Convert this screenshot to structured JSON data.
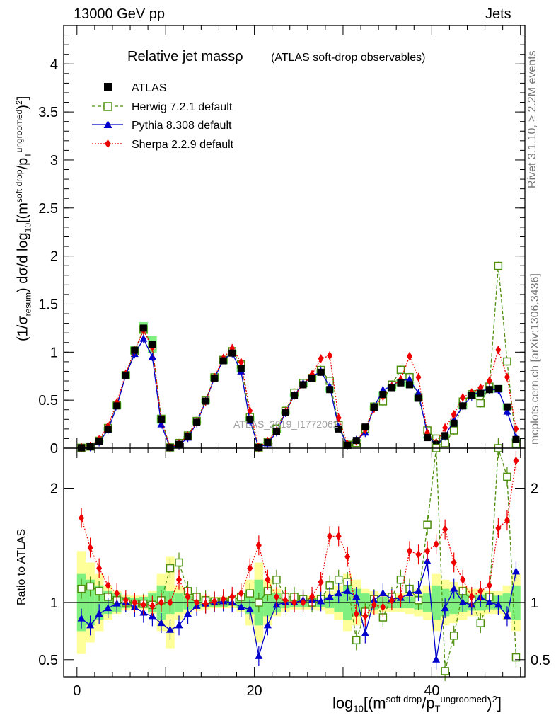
{
  "header": {
    "left": "13000 GeV pp",
    "right": "Jets"
  },
  "side_labels": {
    "rivet": "Rivet 3.1.10, ≥ 2.2M events",
    "mcplots": "mcplots.cern.ch [arXiv:1306.3436]"
  },
  "chart_data": {
    "type": "line",
    "title": "Relative jet massρ",
    "subtitle": "(ATLAS soft-drop observables)",
    "watermark": "ATLAS_2019_I1772062",
    "xlabel": "log10[(m^{soft drop}/p_T^{ungroomed})^2]",
    "ylabel": "(1/σ_resum) dσ/d log10[(m^{soft drop}/p_T^{ungroomed})^2]",
    "ratio_ylabel": "Ratio to ATLAS",
    "xlim": [
      -1.5,
      50.5
    ],
    "ylim": [
      0,
      4.4
    ],
    "ratio_ylim": [
      0.35,
      2.35
    ],
    "xticks": [
      0,
      20,
      40
    ],
    "yticks": [
      "0",
      "0.5",
      "1",
      "1.5",
      "2",
      "2.5",
      "3",
      "3.5",
      "4"
    ],
    "ratio_yticks": [
      "0.5",
      "1",
      "2"
    ],
    "legend_position": "top-left",
    "x": [
      0.5,
      1.5,
      2.5,
      3.5,
      4.5,
      5.5,
      6.5,
      7.5,
      8.5,
      9.5,
      10.5,
      11.5,
      12.5,
      13.5,
      14.5,
      15.5,
      16.5,
      17.5,
      18.5,
      19.5,
      20.5,
      21.5,
      22.5,
      23.5,
      24.5,
      25.5,
      26.5,
      27.5,
      28.5,
      29.5,
      30.5,
      31.5,
      32.5,
      33.5,
      34.5,
      35.5,
      36.5,
      37.5,
      38.5,
      39.5,
      40.5,
      41.5,
      42.5,
      43.5,
      44.5,
      45.5,
      46.5,
      47.5,
      48.5,
      49.5
    ],
    "data": {
      "name": "ATLAS",
      "values": [
        0.004,
        0.015,
        0.07,
        0.2,
        0.44,
        0.76,
        1.02,
        1.25,
        1.08,
        0.3,
        0.006,
        0.04,
        0.12,
        0.27,
        0.49,
        0.73,
        0.91,
        0.99,
        0.83,
        0.3,
        0.007,
        0.06,
        0.17,
        0.37,
        0.55,
        0.66,
        0.73,
        0.79,
        0.61,
        0.2,
        0.03,
        0.08,
        0.22,
        0.42,
        0.56,
        0.63,
        0.68,
        0.66,
        0.52,
        0.11,
        0.04,
        0.13,
        0.26,
        0.44,
        0.55,
        0.57,
        0.61,
        0.62,
        0.43,
        0.09
      ],
      "band_green": [
        0.25,
        0.2,
        0.15,
        0.1,
        0.08,
        0.05,
        0.04,
        0.05,
        0.08,
        0.15,
        0.1,
        0.08,
        0.06,
        0.05,
        0.04,
        0.04,
        0.04,
        0.03,
        0.05,
        0.1,
        0.2,
        0.12,
        0.08,
        0.05,
        0.04,
        0.04,
        0.04,
        0.04,
        0.05,
        0.08,
        0.15,
        0.12,
        0.08,
        0.06,
        0.05,
        0.05,
        0.05,
        0.05,
        0.06,
        0.08,
        0.15,
        0.12,
        0.1,
        0.08,
        0.07,
        0.07,
        0.06,
        0.06,
        0.08,
        0.15
      ],
      "band_yellow": [
        0.45,
        0.35,
        0.25,
        0.15,
        0.1,
        0.07,
        0.06,
        0.06,
        0.1,
        0.25,
        0.4,
        0.15,
        0.1,
        0.07,
        0.06,
        0.05,
        0.05,
        0.05,
        0.08,
        0.2,
        0.35,
        0.2,
        0.12,
        0.08,
        0.06,
        0.06,
        0.06,
        0.07,
        0.1,
        0.15,
        0.25,
        0.2,
        0.12,
        0.1,
        0.08,
        0.08,
        0.08,
        0.1,
        0.12,
        0.15,
        0.25,
        0.2,
        0.18,
        0.15,
        0.12,
        0.12,
        0.1,
        0.1,
        0.15,
        0.25
      ]
    },
    "series": [
      {
        "name": "Herwig 7.2.1 default",
        "color": "#4d8f0b",
        "marker": "open-square",
        "dash": "5,3",
        "ratio": [
          1.12,
          1.14,
          1.1,
          1.05,
          1.02,
          1.0,
          0.99,
          0.99,
          0.98,
          1.02,
          1.3,
          1.35,
          1.1,
          1.05,
          1.02,
          1.01,
          1.01,
          1.02,
          1.05,
          1.08,
          1.0,
          1.1,
          1.2,
          1.05,
          1.05,
          1.03,
          1.0,
          1.03,
          1.15,
          1.2,
          1.18,
          0.67,
          0.92,
          1.03,
          0.87,
          1.05,
          1.2,
          1.12,
          1.02,
          1.68,
          2.5,
          0.4,
          0.71,
          1.1,
          1.02,
          0.82,
          1.05,
          3.06,
          2.1,
          0.52
        ]
      },
      {
        "name": "Pythia 8.308 default",
        "color": "#0000cc",
        "marker": "triangle",
        "dash": "",
        "ratio": [
          0.86,
          0.8,
          0.9,
          0.95,
          0.99,
          1.0,
          0.96,
          0.91,
          0.88,
          0.82,
          0.76,
          0.8,
          0.9,
          0.97,
          0.99,
          1.0,
          1.01,
          1.0,
          0.96,
          0.94,
          0.53,
          0.8,
          0.98,
          1.0,
          1.0,
          1.02,
          1.02,
          1.01,
          1.05,
          1.08,
          1.1,
          1.05,
          0.73,
          1.02,
          1.08,
          1.03,
          1.04,
          1.08,
          1.1,
          1.36,
          0.5,
          0.95,
          1.12,
          1.0,
          0.98,
          1.05,
          1.0,
          0.98,
          0.88,
          1.27
        ]
      },
      {
        "name": "Sherpa 2.2.9 default",
        "color": "#ee0000",
        "marker": "diamond",
        "dash": "2,2",
        "ratio": [
          1.74,
          1.48,
          1.3,
          1.15,
          1.08,
          1.02,
          1.0,
          0.98,
          0.97,
          1.0,
          1.0,
          1.2,
          1.05,
          1.0,
          0.99,
          1.01,
          1.03,
          1.05,
          1.08,
          1.3,
          1.5,
          1.2,
          1.05,
          1.02,
          1.0,
          1.0,
          1.05,
          1.18,
          1.58,
          1.58,
          1.4,
          0.9,
          0.88,
          0.98,
          0.96,
          1.02,
          1.05,
          1.45,
          1.42,
          1.45,
          1.51,
          1.64,
          1.35,
          1.2,
          1.05,
          1.1,
          1.15,
          1.65,
          1.72,
          2.24
        ]
      }
    ]
  }
}
